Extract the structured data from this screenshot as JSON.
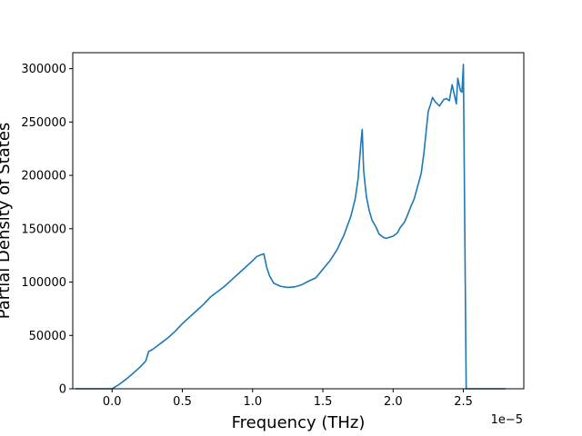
{
  "chart_data": {
    "type": "line",
    "xlabel": "Frequency (THz)",
    "ylabel": "Partial Density of States",
    "x_offset_label": "1e−5",
    "x_scale": 1e-05,
    "xlim": [
      -0.28,
      2.93
    ],
    "ylim": [
      0,
      315000
    ],
    "x_ticks": [
      0.0,
      0.5,
      1.0,
      1.5,
      2.0,
      2.5
    ],
    "x_tick_labels": [
      "0.0",
      "0.5",
      "1.0",
      "1.5",
      "2.0",
      "2.5"
    ],
    "y_ticks": [
      0,
      50000,
      100000,
      150000,
      200000,
      250000,
      300000
    ],
    "y_tick_labels": [
      "0",
      "50000",
      "100000",
      "150000",
      "200000",
      "250000",
      "300000"
    ],
    "grid": false,
    "series": [
      {
        "color": "#1f77b4",
        "x": [
          -0.26,
          -0.1,
          0.0,
          0.05,
          0.1,
          0.15,
          0.2,
          0.24,
          0.26,
          0.27,
          0.3,
          0.33,
          0.36,
          0.4,
          0.45,
          0.5,
          0.55,
          0.6,
          0.65,
          0.7,
          0.75,
          0.8,
          0.85,
          0.9,
          0.95,
          1.0,
          1.03,
          1.05,
          1.08,
          1.1,
          1.12,
          1.15,
          1.2,
          1.25,
          1.3,
          1.35,
          1.4,
          1.45,
          1.5,
          1.55,
          1.6,
          1.65,
          1.7,
          1.73,
          1.75,
          1.77,
          1.78,
          1.79,
          1.8,
          1.81,
          1.83,
          1.85,
          1.88,
          1.9,
          1.93,
          1.95,
          2.0,
          2.03,
          2.05,
          2.08,
          2.1,
          2.13,
          2.15,
          2.2,
          2.22,
          2.25,
          2.27,
          2.28,
          2.3,
          2.33,
          2.36,
          2.38,
          2.4,
          2.42,
          2.44,
          2.45,
          2.46,
          2.48,
          2.49,
          2.5,
          2.51,
          2.52,
          2.53,
          2.54,
          2.55,
          2.56,
          2.6,
          2.8
        ],
        "y": [
          0,
          0,
          0,
          4000,
          9000,
          14500,
          20500,
          26000,
          35000,
          35500,
          38000,
          41000,
          44000,
          48000,
          54000,
          61000,
          67000,
          73000,
          79000,
          86000,
          91000,
          96000,
          102000,
          108000,
          114000,
          120000,
          124000,
          125000,
          126500,
          114000,
          106000,
          99000,
          96000,
          95000,
          95500,
          97500,
          101000,
          104000,
          112000,
          120000,
          130000,
          144000,
          162000,
          178000,
          196000,
          229000,
          243000,
          205000,
          192000,
          180000,
          167000,
          158000,
          151000,
          145000,
          142000,
          141000,
          143000,
          146000,
          151000,
          156000,
          162000,
          172000,
          178000,
          202000,
          222000,
          260000,
          268000,
          273000,
          269000,
          265000,
          271000,
          272000,
          270000,
          285000,
          273000,
          267000,
          291000,
          279000,
          278000,
          304000,
          150000,
          0,
          0,
          0,
          0,
          0,
          0,
          0
        ]
      }
    ]
  }
}
